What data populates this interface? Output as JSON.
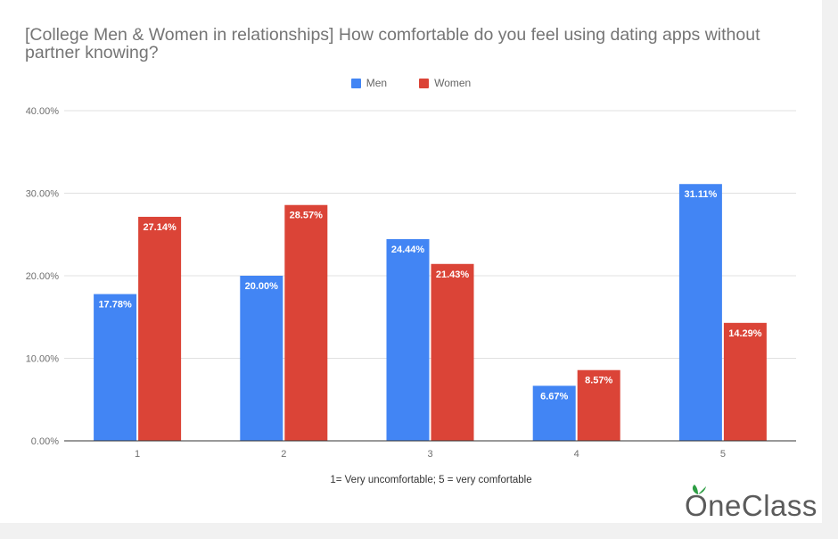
{
  "chart_data": {
    "type": "bar",
    "title": "[College Men & Women in relationships] How comfortable do you feel using dating apps without partner knowing?",
    "xlabel": "1= Very uncomfortable; 5 = very comfortable",
    "ylabel": "",
    "categories": [
      "1",
      "2",
      "3",
      "4",
      "5"
    ],
    "series": [
      {
        "name": "Men",
        "color": "#4285f4",
        "values": [
          17.78,
          20.0,
          24.44,
          6.67,
          31.11
        ],
        "labels": [
          "17.78%",
          "20.00%",
          "24.44%",
          "6.67%",
          "31.11%"
        ]
      },
      {
        "name": "Women",
        "color": "#db4437",
        "values": [
          27.14,
          28.57,
          21.43,
          8.57,
          14.29
        ],
        "labels": [
          "27.14%",
          "28.57%",
          "21.43%",
          "8.57%",
          "14.29%"
        ]
      }
    ],
    "ylim": [
      0,
      40
    ],
    "yticks": [
      0,
      10,
      20,
      30,
      40
    ],
    "ytick_labels": [
      "0.00%",
      "10.00%",
      "20.00%",
      "30.00%",
      "40.00%"
    ],
    "grid": true,
    "legend_position": "top-center"
  },
  "watermark": {
    "text": "OneClass",
    "leaf_color": "#2e9e44"
  }
}
